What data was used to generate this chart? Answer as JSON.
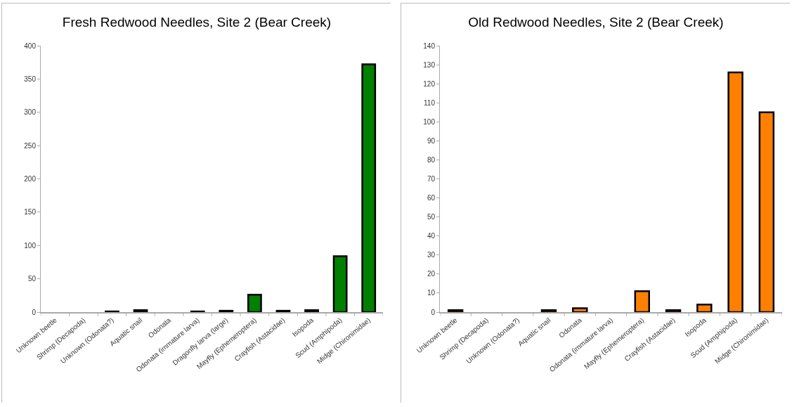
{
  "chart_data": [
    {
      "type": "bar",
      "title": "Fresh Redwood Needles, Site 2 (Bear Creek)",
      "categories": [
        "Unknown beetle",
        "Shrimp (Decapoda)",
        "Unknown (Odonata?)",
        "Aquatic snail",
        "Odonata",
        "Odonata (immature larva)",
        "Dragonfly larva (large)",
        "Mayfly (Ephemeroptera)",
        "Crayfish (Astacidae)",
        "Isopoda",
        "Scud (Amphipoda)",
        "Midge (Chironimidae)"
      ],
      "series": [
        {
          "color": "#008000",
          "values": [
            0,
            0,
            1,
            3,
            0,
            1,
            2,
            26,
            2,
            3,
            84,
            372
          ]
        }
      ],
      "ylim": [
        0,
        400
      ],
      "yticks": [
        0,
        50,
        100,
        150,
        200,
        250,
        300,
        350,
        400
      ],
      "grid": false,
      "legend": false
    },
    {
      "type": "bar",
      "title": "Old Redwood Needles, Site 2 (Bear Creek)",
      "categories": [
        "Unknown beetle",
        "Shrimp (Decapoda)",
        "Unknown (Odonata?)",
        "Aquatic snail",
        "Odonata",
        "Odonata (immature larva)",
        "Mayfly (Ephemeroptera)",
        "Crayfish (Astacidae)",
        "Isopoda",
        "Scud (Amphipoda)",
        "Midge (Chironimidae)"
      ],
      "series": [
        {
          "color": "#ff8000",
          "values": [
            1,
            0,
            0,
            1,
            2,
            0,
            11,
            1,
            4,
            126,
            105
          ]
        }
      ],
      "ylim": [
        0,
        140
      ],
      "yticks": [
        0,
        10,
        20,
        30,
        40,
        50,
        60,
        70,
        80,
        90,
        100,
        110,
        120,
        130,
        140
      ],
      "grid": false,
      "legend": false
    }
  ]
}
